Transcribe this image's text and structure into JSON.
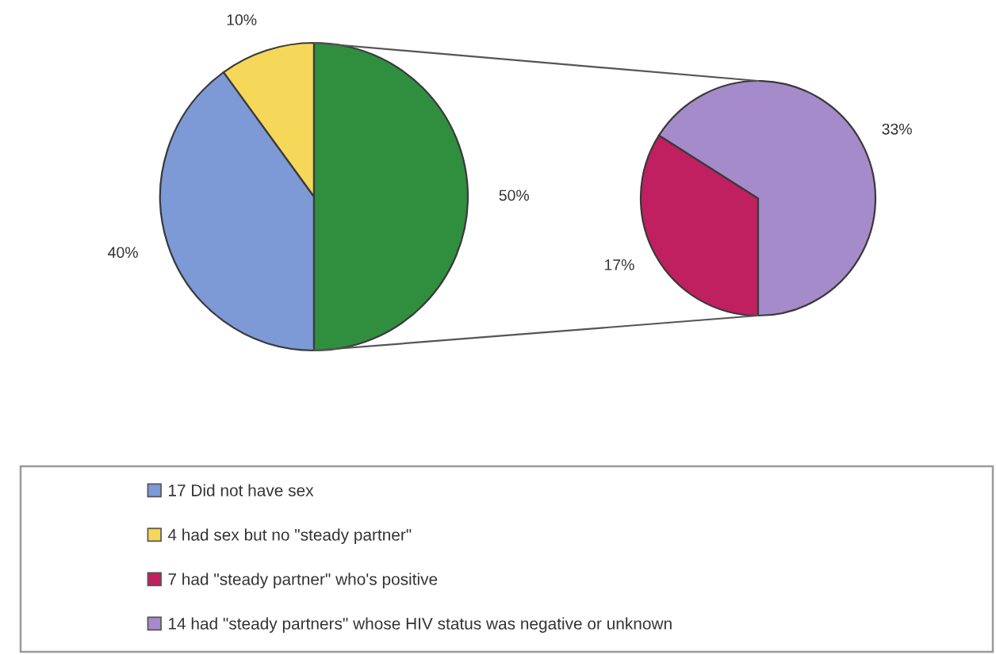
{
  "chart_data": [
    {
      "type": "pie",
      "categories": [
        "17 Did not have sex",
        "4 had sex but no \"steady partner\"",
        null
      ],
      "values": [
        40,
        10,
        50
      ],
      "colors": [
        "#7d99d6",
        "#f5d75a",
        "#2f8f3f"
      ],
      "value_labels": [
        "40%",
        "10%",
        "50%"
      ],
      "legend": "bottom"
    },
    {
      "type": "pie",
      "categories": [
        "7 had \"steady partner\" who's positive",
        "14 had \"steady partners\" whose HIV status was negative or unknown"
      ],
      "values": [
        17,
        33
      ],
      "colors": [
        "#c02060",
        "#a68bcb"
      ],
      "value_labels": [
        "17%",
        "33%"
      ],
      "legend": "bottom"
    }
  ]
}
